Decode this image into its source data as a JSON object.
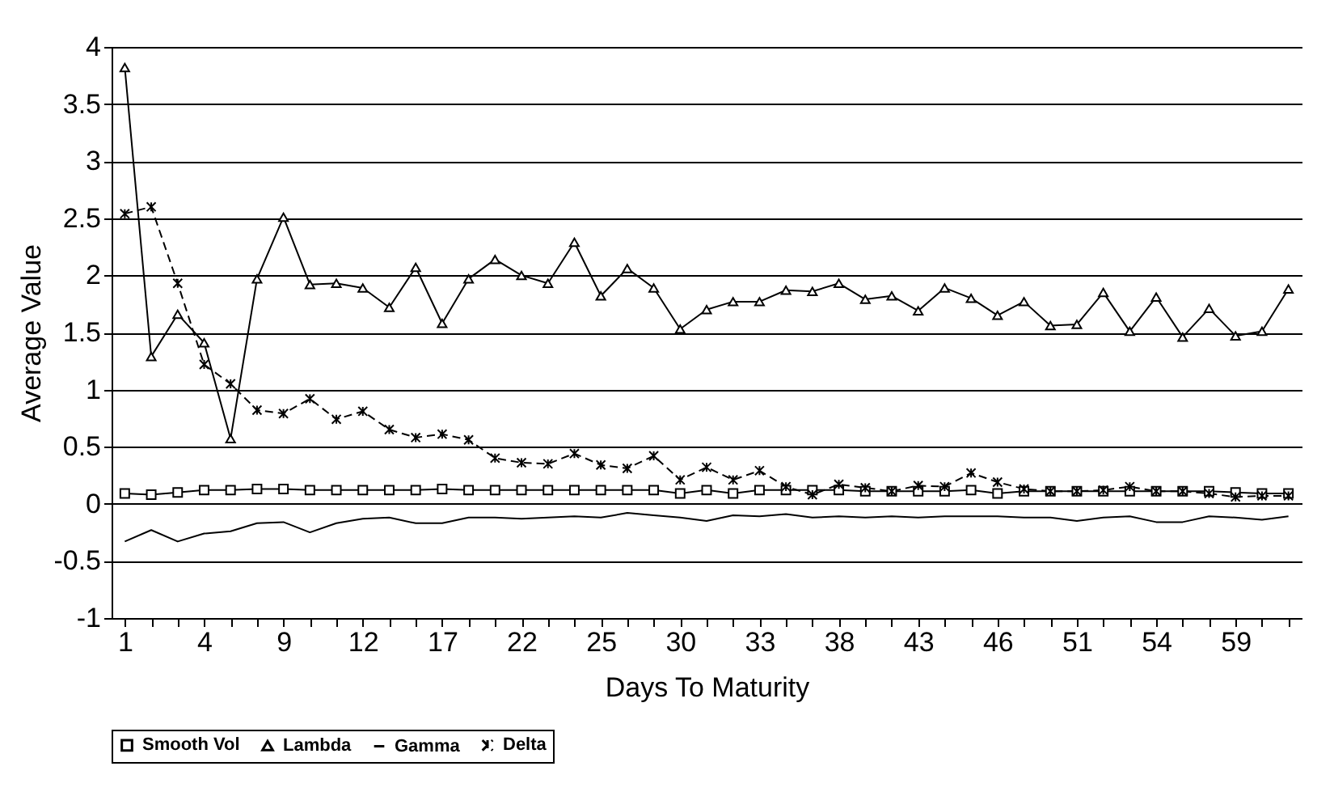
{
  "chart_data": {
    "type": "line",
    "xlabel": "Days To Maturity",
    "ylabel": "Average Value",
    "categories": [
      "1",
      null,
      null,
      "4",
      null,
      null,
      "9",
      null,
      null,
      "12",
      null,
      null,
      "17",
      null,
      null,
      "22",
      null,
      null,
      "25",
      null,
      null,
      "30",
      null,
      null,
      "33",
      null,
      null,
      "38",
      null,
      null,
      "43",
      null,
      null,
      "46",
      null,
      null,
      "51",
      null,
      null,
      "54",
      null,
      null,
      "59",
      null,
      null
    ],
    "series": [
      {
        "name": "Smooth Vol",
        "color": "#000000",
        "marker": "square",
        "line_style": "solid",
        "values": [
          0.09,
          0.08,
          0.1,
          0.12,
          0.12,
          0.13,
          0.13,
          0.12,
          0.12,
          0.12,
          0.12,
          0.12,
          0.13,
          0.12,
          0.12,
          0.12,
          0.12,
          0.12,
          0.12,
          0.12,
          0.12,
          0.09,
          0.12,
          0.09,
          0.12,
          0.12,
          0.12,
          0.12,
          0.11,
          0.11,
          0.11,
          0.11,
          0.12,
          0.09,
          0.11,
          0.11,
          0.11,
          0.11,
          0.11,
          0.11,
          0.11,
          0.11,
          0.1,
          0.09,
          0.09
        ]
      },
      {
        "name": "Lambda",
        "color": "#000000",
        "marker": "triangle",
        "line_style": "solid",
        "values": [
          3.82,
          1.29,
          1.66,
          1.41,
          0.57,
          1.97,
          2.51,
          1.92,
          1.93,
          1.89,
          1.72,
          2.07,
          1.58,
          1.97,
          2.14,
          2.0,
          1.93,
          2.29,
          1.82,
          2.06,
          1.89,
          1.53,
          1.7,
          1.77,
          1.77,
          1.87,
          1.86,
          1.93,
          1.79,
          1.82,
          1.69,
          1.89,
          1.8,
          1.65,
          1.77,
          1.56,
          1.57,
          1.85,
          1.51,
          1.81,
          1.46,
          1.71,
          1.47,
          1.51,
          1.88
        ]
      },
      {
        "name": "Gamma",
        "color": "#000000",
        "marker": "none",
        "line_style": "solid",
        "values": [
          -0.33,
          -0.23,
          -0.33,
          -0.26,
          -0.24,
          -0.17,
          -0.16,
          -0.25,
          -0.17,
          -0.13,
          -0.12,
          -0.17,
          -0.17,
          -0.12,
          -0.12,
          -0.13,
          -0.12,
          -0.11,
          -0.12,
          -0.08,
          -0.1,
          -0.12,
          -0.15,
          -0.1,
          -0.11,
          -0.09,
          -0.12,
          -0.11,
          -0.12,
          -0.11,
          -0.12,
          -0.11,
          -0.11,
          -0.11,
          -0.12,
          -0.12,
          -0.15,
          -0.12,
          -0.11,
          -0.16,
          -0.16,
          -0.11,
          -0.12,
          -0.14,
          -0.11
        ]
      },
      {
        "name": "Delta",
        "color": "#000000",
        "marker": "cross",
        "line_style": "dashed",
        "values": [
          2.54,
          2.6,
          1.93,
          1.22,
          1.05,
          0.82,
          0.79,
          0.92,
          0.74,
          0.81,
          0.65,
          0.58,
          0.61,
          0.56,
          0.4,
          0.36,
          0.35,
          0.44,
          0.34,
          0.31,
          0.42,
          0.21,
          0.32,
          0.21,
          0.29,
          0.15,
          0.08,
          0.17,
          0.14,
          0.11,
          0.16,
          0.15,
          0.27,
          0.19,
          0.13,
          0.11,
          0.11,
          0.12,
          0.15,
          0.11,
          0.11,
          0.09,
          0.06,
          0.07,
          0.07
        ]
      }
    ],
    "ylim": [
      -1,
      4
    ],
    "yticks": [
      -1,
      -0.5,
      0,
      0.5,
      1,
      1.5,
      2,
      2.5,
      3,
      3.5,
      4
    ],
    "grid": "y",
    "legend": "bottom"
  }
}
